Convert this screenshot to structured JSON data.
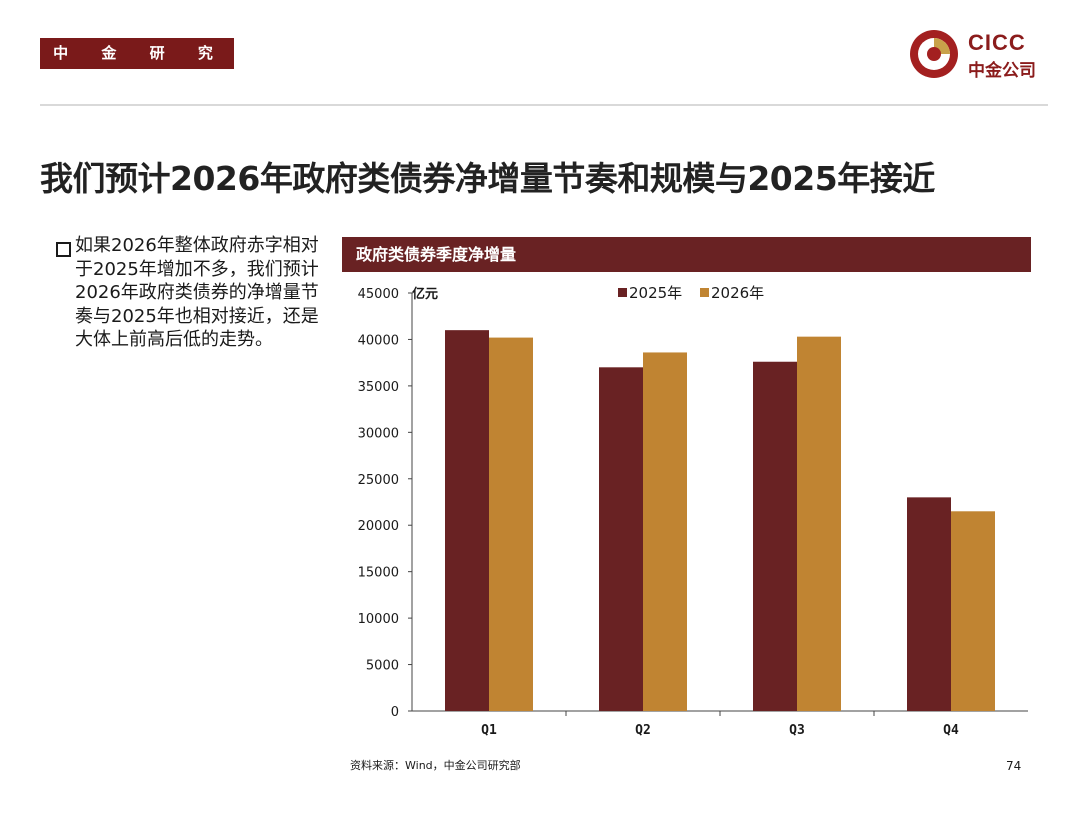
{
  "header": {
    "dept_tag": "中 金 研 究 部",
    "logo_en": "CICC",
    "logo_cn": "中金公司"
  },
  "title": "我们预计2026年政府类债券净增量节奏和规模与2025年接近",
  "bullet": "如果2026年整体政府赤字相对于2025年增加不多，我们预计2026年政府类债券的净增量节奏与2025年也相对接近，还是大体上前高后低的走势。",
  "chart_header": "政府类债券季度净增量",
  "chart_data": {
    "type": "bar",
    "title": "政府类债券季度净增量",
    "ylabel": "亿元",
    "xlabel": "",
    "categories": [
      "Q1",
      "Q2",
      "Q3",
      "Q4"
    ],
    "series": [
      {
        "name": "2025年",
        "color": "#692223",
        "values": [
          41000,
          37000,
          37600,
          23000
        ]
      },
      {
        "name": "2026年",
        "color": "#c08432",
        "values": [
          40200,
          38600,
          40300,
          21500
        ]
      }
    ],
    "ylim": [
      0,
      45000
    ],
    "yticks": [
      "0",
      "5000",
      "10000",
      "15000",
      "20000",
      "25000",
      "30000",
      "35000",
      "40000",
      "45000"
    ],
    "legend_position": "top-center",
    "grid": false
  },
  "footer": {
    "source": "资料来源：Wind，中金公司研究部",
    "page_number": "74"
  }
}
